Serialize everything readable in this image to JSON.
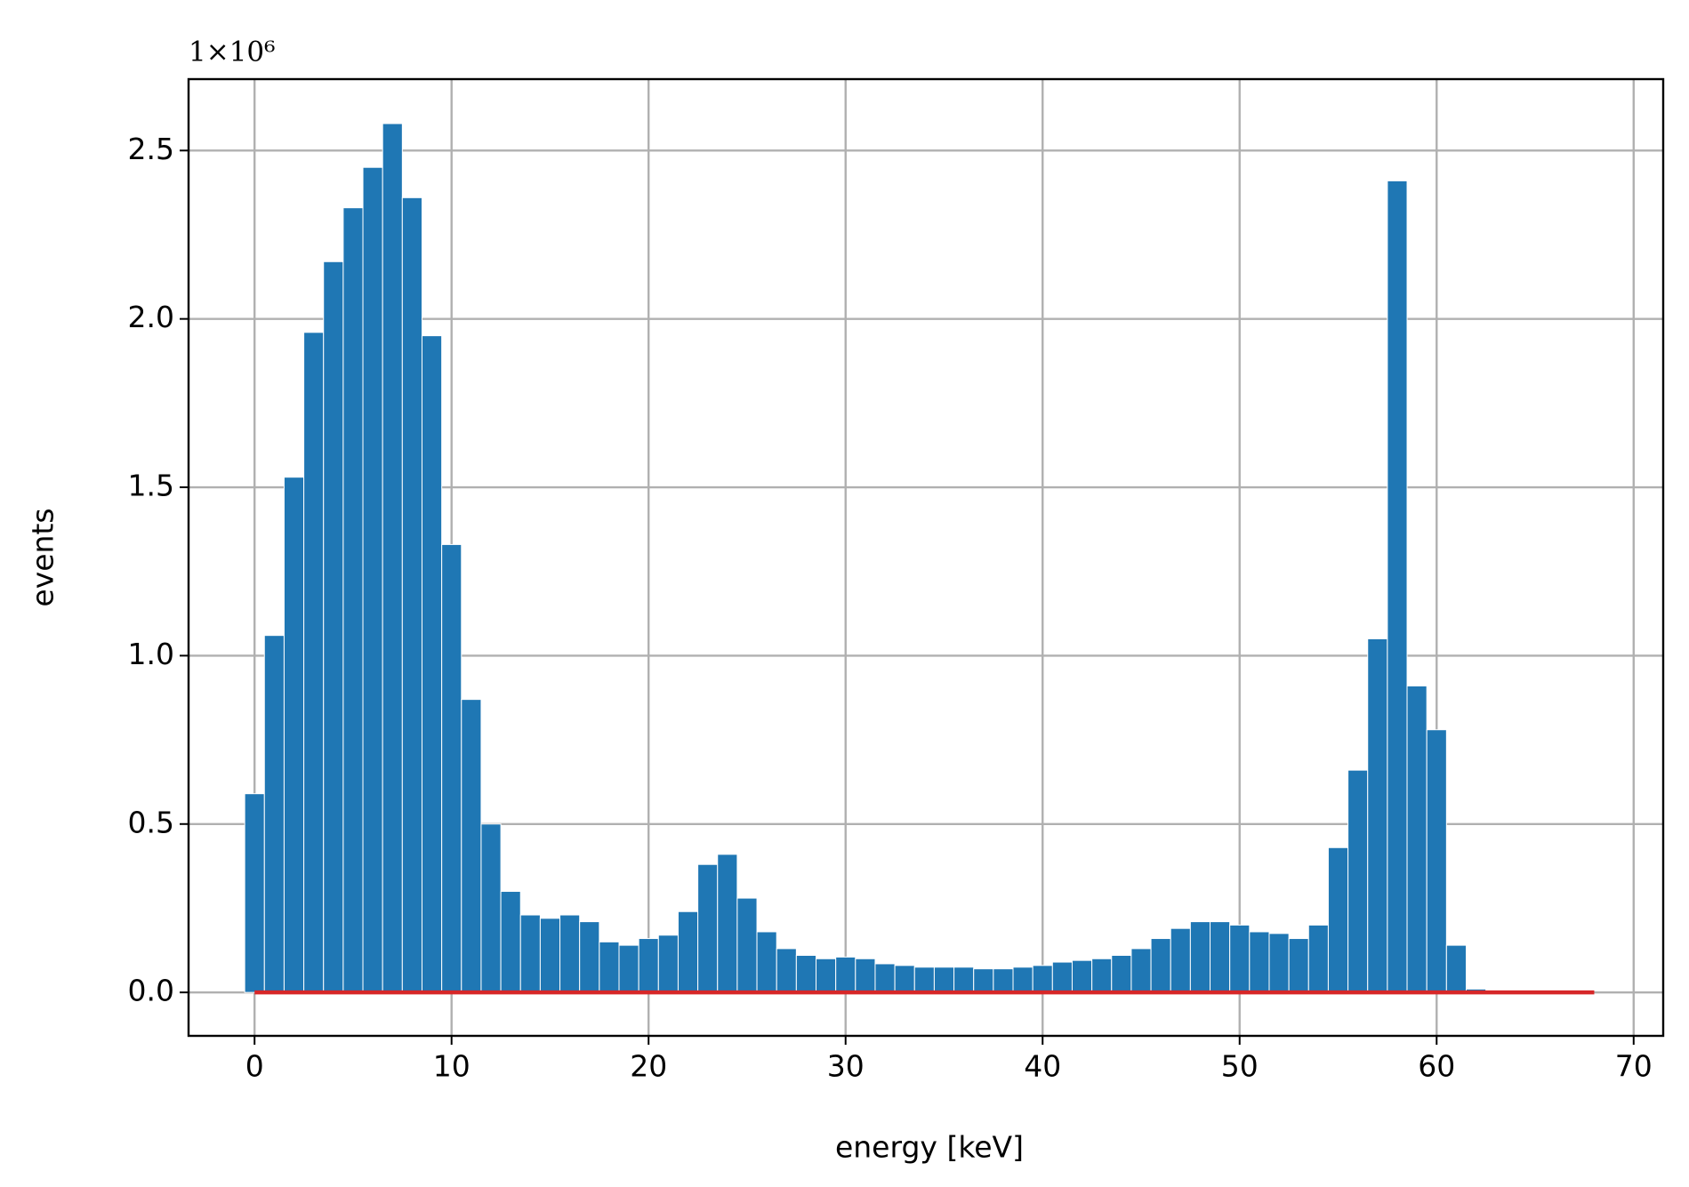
{
  "chart_data": {
    "type": "histogram",
    "xlabel": "energy [keV]",
    "ylabel": "events",
    "y_offset_label": "1×10⁶",
    "bins": [
      -0.5,
      0.5,
      1.5,
      2.5,
      3.5,
      4.5,
      5.5,
      6.5,
      7.5,
      8.5,
      9.5,
      10.5,
      11.5,
      12.5,
      13.5,
      14.5,
      15.5,
      16.5,
      17.5,
      18.5,
      19.5,
      20.5,
      21.5,
      22.5,
      23.5,
      24.5,
      25.5,
      26.5,
      27.5,
      28.5,
      29.5,
      30.5,
      31.5,
      32.5,
      33.5,
      34.5,
      35.5,
      36.5,
      37.5,
      38.5,
      39.5,
      40.5,
      41.5,
      42.5,
      43.5,
      44.5,
      45.5,
      46.5,
      47.5,
      48.5,
      49.5,
      50.5,
      51.5,
      52.5,
      53.5,
      54.5,
      55.5,
      56.5,
      57.5,
      58.5,
      59.5,
      60.5,
      61.5,
      62.5,
      63.5,
      64.5,
      65.5,
      66.5,
      67.5
    ],
    "counts": [
      0.59,
      1.06,
      1.53,
      1.96,
      2.17,
      2.33,
      2.45,
      2.58,
      2.36,
      1.95,
      1.33,
      0.87,
      0.5,
      0.3,
      0.23,
      0.22,
      0.23,
      0.21,
      0.15,
      0.14,
      0.16,
      0.17,
      0.24,
      0.38,
      0.41,
      0.28,
      0.18,
      0.13,
      0.11,
      0.1,
      0.105,
      0.1,
      0.085,
      0.08,
      0.075,
      0.075,
      0.075,
      0.07,
      0.07,
      0.075,
      0.08,
      0.09,
      0.095,
      0.1,
      0.11,
      0.13,
      0.16,
      0.19,
      0.21,
      0.21,
      0.2,
      0.18,
      0.175,
      0.16,
      0.2,
      0.43,
      0.66,
      1.05,
      2.41,
      0.91,
      0.78,
      0.14,
      0.01,
      0,
      0,
      0,
      0,
      0
    ],
    "color": "#1f77b4",
    "line": {
      "x": [
        0,
        68
      ],
      "y": [
        0,
        0
      ],
      "color": "#d62728"
    },
    "xlim": [
      -3.35,
      71.5
    ],
    "ylim": [
      -0.129,
      2.712
    ],
    "xticks": [
      0,
      10,
      20,
      30,
      40,
      50,
      60,
      70
    ],
    "yticks": [
      {
        "value": 0,
        "label": "0.0"
      },
      {
        "value": 0.5,
        "label": "0.5"
      },
      {
        "value": 1,
        "label": "1.0"
      },
      {
        "value": 1.5,
        "label": "1.5"
      },
      {
        "value": 2,
        "label": "2.0"
      },
      {
        "value": 2.5,
        "label": "2.5"
      }
    ],
    "grid": true
  }
}
